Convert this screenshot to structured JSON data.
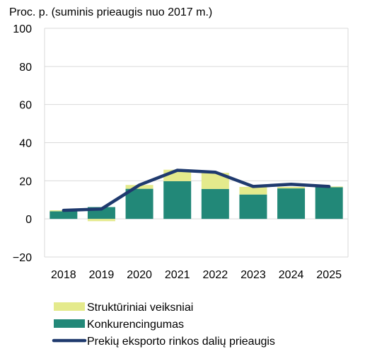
{
  "chart_data": {
    "type": "bar",
    "unit_label": "Proc. p. (suminis prieaugis nuo 2017 m.)",
    "categories": [
      "2018",
      "2019",
      "2020",
      "2021",
      "2022",
      "2023",
      "2024",
      "2025"
    ],
    "series": [
      {
        "name": "Struktūriniai veiksniai",
        "kind": "bar",
        "color": "#e4ea8c",
        "values": [
          0.5,
          -1.2,
          2.0,
          6.0,
          8.5,
          4.0,
          0.8,
          0.4
        ]
      },
      {
        "name": "Konkurencingumas",
        "kind": "bar",
        "color": "#228878",
        "values": [
          4.0,
          6.2,
          15.8,
          19.8,
          15.7,
          12.8,
          16.0,
          16.6
        ]
      },
      {
        "name": "Prekių eksporto rinkos dalių prieaugis",
        "kind": "line",
        "color": "#1f3a6e",
        "values": [
          4.5,
          5.2,
          17.8,
          25.5,
          24.5,
          17.0,
          18.2,
          17.0
        ]
      }
    ],
    "ylim": [
      -20,
      100
    ],
    "yticks": [
      -20,
      0,
      20,
      40,
      60,
      80,
      100
    ],
    "ytick_labels": [
      "−20",
      "0",
      "20",
      "40",
      "60",
      "80",
      "100"
    ],
    "grid": true,
    "legend_placement": "bottom"
  }
}
